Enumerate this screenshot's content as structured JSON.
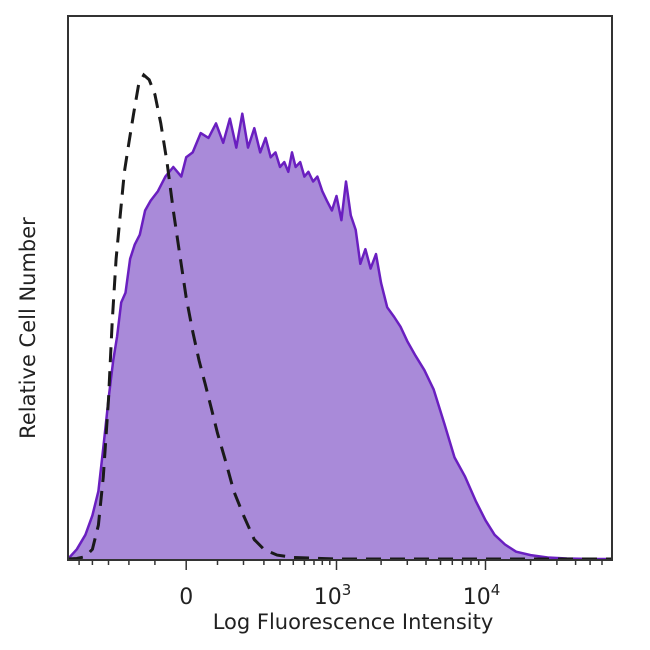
{
  "chart_data": {
    "type": "area",
    "xlabel": "Log Fluorescence Intensity",
    "ylabel": "Relative Cell Number",
    "x_scale": "biexponential",
    "x_ticks": [
      {
        "value": 0,
        "base": "0",
        "exp": ""
      },
      {
        "value": 1000,
        "base": "10",
        "exp": "3"
      },
      {
        "value": 10000,
        "base": "10",
        "exp": "4"
      }
    ],
    "xlim": [
      -600,
      70000
    ],
    "ylim": [
      0,
      100
    ],
    "y_ticks": [],
    "grid": false,
    "legend": "none",
    "series": [
      {
        "style": "filled",
        "fill": "#a98ad9",
        "stroke": "#6a1fc0",
        "x": [
          -600,
          -520,
          -450,
          -400,
          -360,
          -330,
          -300,
          -275,
          -255,
          -235,
          -215,
          -195,
          -175,
          -155,
          -135,
          -115,
          -90,
          -65,
          -40,
          -15,
          0,
          20,
          45,
          70,
          95,
          120,
          145,
          170,
          195,
          220,
          250,
          280,
          310,
          340,
          370,
          400,
          430,
          460,
          490,
          520,
          560,
          600,
          640,
          690,
          740,
          800,
          860,
          930,
          1000,
          1080,
          1160,
          1250,
          1350,
          1450,
          1570,
          1700,
          1850,
          2000,
          2200,
          2450,
          2700,
          3000,
          3400,
          3900,
          4500,
          5300,
          6200,
          7300,
          8600,
          10000,
          11500,
          13500,
          16000,
          20000,
          26000,
          35000,
          50000,
          70000
        ],
        "y": [
          0,
          2,
          5,
          9,
          14,
          23,
          33,
          41,
          46,
          53,
          55,
          62,
          65,
          67,
          72,
          74,
          76,
          79,
          81,
          79,
          83,
          84,
          88,
          87,
          90,
          86,
          91,
          85,
          92,
          85,
          89,
          84,
          87,
          83,
          84,
          81,
          82,
          80,
          84,
          81,
          82,
          79,
          80,
          78,
          79,
          76,
          74,
          72,
          75,
          70,
          78,
          71,
          68,
          61,
          64,
          60,
          63,
          57,
          52,
          50,
          48,
          45,
          42,
          39,
          35,
          28,
          21,
          17,
          12,
          8,
          5,
          3,
          1.5,
          0.8,
          0.3,
          0.1,
          0,
          0
        ]
      },
      {
        "style": "dashed",
        "stroke": "#1a1a1a",
        "x": [
          -600,
          -520,
          -450,
          -400,
          -360,
          -330,
          -300,
          -280,
          -260,
          -240,
          -220,
          -200,
          -180,
          -160,
          -140,
          -120,
          -100,
          -80,
          -60,
          -40,
          -20,
          0,
          20,
          40,
          60,
          80,
          100,
          130,
          160,
          200,
          250,
          300,
          380,
          500,
          1000,
          70000
        ],
        "y": [
          0,
          0.1,
          0.5,
          2,
          7,
          17,
          33,
          49,
          62,
          71,
          80,
          86,
          92,
          98,
          100,
          99,
          96,
          90,
          82,
          72,
          63,
          54,
          47,
          41,
          36,
          31,
          26,
          20,
          14,
          9,
          4,
          2,
          0.8,
          0.3,
          0,
          0
        ]
      }
    ]
  }
}
